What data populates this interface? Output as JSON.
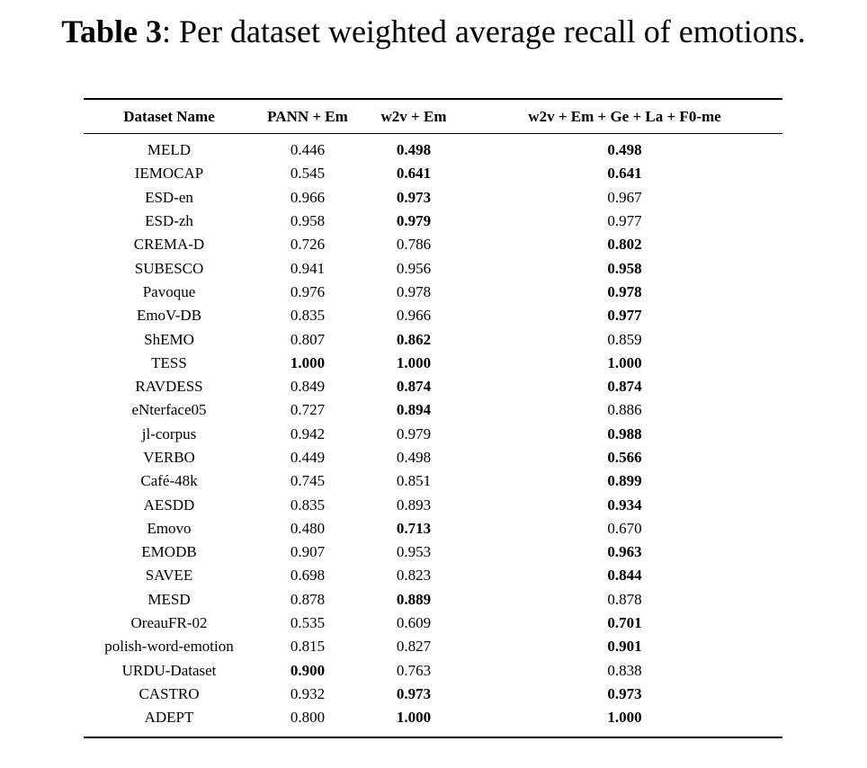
{
  "caption": {
    "label": "Table 3",
    "text": ": Per dataset weighted average recall of emotions."
  },
  "table": {
    "headers": [
      "Dataset Name",
      "PANN + Em",
      "w2v + Em",
      "w2v + Em + Ge + La + F0-me"
    ],
    "rows": [
      {
        "name": "MELD",
        "values": [
          "0.446",
          "0.498",
          "0.498"
        ],
        "bold": [
          false,
          true,
          true
        ]
      },
      {
        "name": "IEMOCAP",
        "values": [
          "0.545",
          "0.641",
          "0.641"
        ],
        "bold": [
          false,
          true,
          true
        ]
      },
      {
        "name": "ESD-en",
        "values": [
          "0.966",
          "0.973",
          "0.967"
        ],
        "bold": [
          false,
          true,
          false
        ]
      },
      {
        "name": "ESD-zh",
        "values": [
          "0.958",
          "0.979",
          "0.977"
        ],
        "bold": [
          false,
          true,
          false
        ]
      },
      {
        "name": "CREMA-D",
        "values": [
          "0.726",
          "0.786",
          "0.802"
        ],
        "bold": [
          false,
          false,
          true
        ]
      },
      {
        "name": "SUBESCO",
        "values": [
          "0.941",
          "0.956",
          "0.958"
        ],
        "bold": [
          false,
          false,
          true
        ]
      },
      {
        "name": "Pavoque",
        "values": [
          "0.976",
          "0.978",
          "0.978"
        ],
        "bold": [
          false,
          false,
          true
        ]
      },
      {
        "name": "EmoV-DB",
        "values": [
          "0.835",
          "0.966",
          "0.977"
        ],
        "bold": [
          false,
          false,
          true
        ]
      },
      {
        "name": "ShEMO",
        "values": [
          "0.807",
          "0.862",
          "0.859"
        ],
        "bold": [
          false,
          true,
          false
        ]
      },
      {
        "name": "TESS",
        "values": [
          "1.000",
          "1.000",
          "1.000"
        ],
        "bold": [
          true,
          true,
          true
        ]
      },
      {
        "name": "RAVDESS",
        "values": [
          "0.849",
          "0.874",
          "0.874"
        ],
        "bold": [
          false,
          true,
          true
        ]
      },
      {
        "name": "eNterface05",
        "values": [
          "0.727",
          "0.894",
          "0.886"
        ],
        "bold": [
          false,
          true,
          false
        ]
      },
      {
        "name": "jl-corpus",
        "values": [
          "0.942",
          "0.979",
          "0.988"
        ],
        "bold": [
          false,
          false,
          true
        ]
      },
      {
        "name": "VERBO",
        "values": [
          "0.449",
          "0.498",
          "0.566"
        ],
        "bold": [
          false,
          false,
          true
        ]
      },
      {
        "name": "Café-48k",
        "values": [
          "0.745",
          "0.851",
          "0.899"
        ],
        "bold": [
          false,
          false,
          true
        ]
      },
      {
        "name": "AESDD",
        "values": [
          "0.835",
          "0.893",
          "0.934"
        ],
        "bold": [
          false,
          false,
          true
        ]
      },
      {
        "name": "Emovo",
        "values": [
          "0.480",
          "0.713",
          "0.670"
        ],
        "bold": [
          false,
          true,
          false
        ]
      },
      {
        "name": "EMODB",
        "values": [
          "0.907",
          "0.953",
          "0.963"
        ],
        "bold": [
          false,
          false,
          true
        ]
      },
      {
        "name": "SAVEE",
        "values": [
          "0.698",
          "0.823",
          "0.844"
        ],
        "bold": [
          false,
          false,
          true
        ]
      },
      {
        "name": "MESD",
        "values": [
          "0.878",
          "0.889",
          "0.878"
        ],
        "bold": [
          false,
          true,
          false
        ]
      },
      {
        "name": "OreauFR-02",
        "values": [
          "0.535",
          "0.609",
          "0.701"
        ],
        "bold": [
          false,
          false,
          true
        ]
      },
      {
        "name": "polish-word-emotion",
        "values": [
          "0.815",
          "0.827",
          "0.901"
        ],
        "bold": [
          false,
          false,
          true
        ]
      },
      {
        "name": "URDU-Dataset",
        "values": [
          "0.900",
          "0.763",
          "0.838"
        ],
        "bold": [
          true,
          false,
          false
        ]
      },
      {
        "name": "CASTRO",
        "values": [
          "0.932",
          "0.973",
          "0.973"
        ],
        "bold": [
          false,
          true,
          true
        ]
      },
      {
        "name": "ADEPT",
        "values": [
          "0.800",
          "1.000",
          "1.000"
        ],
        "bold": [
          false,
          true,
          true
        ]
      }
    ]
  }
}
